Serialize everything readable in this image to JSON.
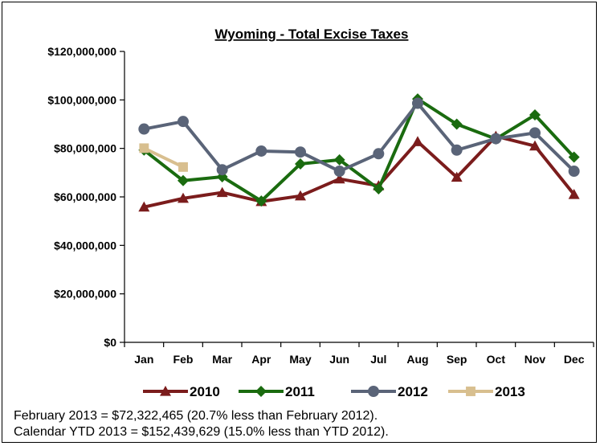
{
  "chart_data": {
    "type": "line",
    "title": "Wyoming - Total Excise Taxes",
    "xlabel": "",
    "ylabel": "",
    "ylim": [
      0,
      120000000
    ],
    "yticks": [
      0,
      20000000,
      40000000,
      60000000,
      80000000,
      100000000,
      120000000
    ],
    "ytick_labels": [
      "$0",
      "$20,000,000",
      "$40,000,000",
      "$60,000,000",
      "$80,000,000",
      "$100,000,000",
      "$120,000,000"
    ],
    "categories": [
      "Jan",
      "Feb",
      "Mar",
      "Apr",
      "May",
      "Jun",
      "Jul",
      "Aug",
      "Sep",
      "Oct",
      "Nov",
      "Dec"
    ],
    "grid": false,
    "legend_position": "bottom",
    "series": [
      {
        "name": "2010",
        "color": "#7b1c1c",
        "marker": "triangle",
        "values": [
          55800000,
          59400000,
          61800000,
          58100000,
          60400000,
          67400000,
          64600000,
          82800000,
          68100000,
          85000000,
          81000000,
          61000000
        ]
      },
      {
        "name": "2011",
        "color": "#1a6b0f",
        "marker": "diamond",
        "values": [
          79300000,
          66700000,
          68300000,
          58300000,
          73600000,
          75300000,
          63300000,
          100400000,
          90000000,
          83900000,
          93800000,
          76400000
        ]
      },
      {
        "name": "2012",
        "color": "#5a6478",
        "marker": "circle",
        "values": [
          88000000,
          91100000,
          71200000,
          78900000,
          78500000,
          70600000,
          77800000,
          98600000,
          79300000,
          84000000,
          86400000,
          70600000
        ]
      },
      {
        "name": "2013",
        "color": "#d8bf8f",
        "marker": "square",
        "values": [
          80100000,
          72322465,
          null,
          null,
          null,
          null,
          null,
          null,
          null,
          null,
          null,
          null
        ]
      }
    ]
  },
  "notes": [
    "February 2013 = $72,322,465 (20.7% less than February 2012).",
    "Calendar YTD 2013 = $152,439,629 (15.0% less than YTD 2012)."
  ]
}
